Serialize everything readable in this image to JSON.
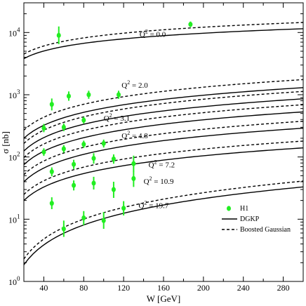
{
  "chart_data": {
    "type": "scatter",
    "xlabel": "W [GeV]",
    "ylabel": "σ [nb]",
    "xlim": [
      20,
      300
    ],
    "ylim": [
      1,
      30000
    ],
    "y_scale": "log",
    "x_ticks": [
      "40",
      "80",
      "120",
      "160",
      "200",
      "240",
      "280"
    ],
    "y_ticks": [
      "10",
      "10",
      "10",
      "10",
      "10"
    ],
    "y_tick_exponents": [
      "0",
      "1",
      "2",
      "3",
      "4"
    ],
    "colors": {
      "h1": "#22ee22",
      "curve": "#000000"
    },
    "legend": {
      "placement": "lower-right",
      "entries": [
        {
          "label": "H1",
          "style": "marker"
        },
        {
          "label": "DGKP",
          "style": "solid"
        },
        {
          "label": "Boosted Gaussian",
          "style": "dashed"
        }
      ]
    },
    "q2_labels": [
      {
        "prefix": "Q",
        "exp": "2",
        "suffix": " = 0.0",
        "x": 136,
        "y": 8500
      },
      {
        "prefix": "Q",
        "exp": "2",
        "suffix": " = 2.0",
        "x": 118,
        "y": 1300
      },
      {
        "prefix": "Q",
        "exp": "2",
        "suffix": " = 3.1",
        "x": 100,
        "y": 380
      },
      {
        "prefix": "Q",
        "exp": "2",
        "suffix": " = 4.8",
        "x": 118,
        "y": 200
      },
      {
        "prefix": "Q",
        "exp": "2",
        "suffix": " = 7.2",
        "x": 145,
        "y": 68
      },
      {
        "prefix": "Q",
        "exp": "2",
        "suffix": " = 10.9",
        "x": 140,
        "y": 37
      },
      {
        "prefix": "Q",
        "exp": "2",
        "suffix": " = 19.7",
        "x": 135,
        "y": 15
      }
    ],
    "series": [
      {
        "name": "H1",
        "points": [
          {
            "x": 55,
            "y": 9000,
            "err": [
              6500,
              12500
            ]
          },
          {
            "x": 187,
            "y": 13500,
            "err": [
              12200,
              15000
            ]
          },
          {
            "x": 48,
            "y": 700,
            "err": [
              560,
              870
            ]
          },
          {
            "x": 65,
            "y": 950,
            "err": [
              800,
              1130
            ]
          },
          {
            "x": 85,
            "y": 1000,
            "err": [
              860,
              1160
            ]
          },
          {
            "x": 115,
            "y": 1000,
            "err": [
              860,
              1160
            ]
          },
          {
            "x": 40,
            "y": 290,
            "err": [
              250,
              340
            ]
          },
          {
            "x": 60,
            "y": 300,
            "err": [
              260,
              345
            ]
          },
          {
            "x": 80,
            "y": 390,
            "err": [
              345,
              440
            ]
          },
          {
            "x": 40,
            "y": 120,
            "err": [
              104,
              138
            ]
          },
          {
            "x": 60,
            "y": 135,
            "err": [
              117,
              155
            ]
          },
          {
            "x": 80,
            "y": 160,
            "err": [
              140,
              183
            ]
          },
          {
            "x": 100,
            "y": 165,
            "err": [
              142,
              190
            ]
          },
          {
            "x": 48,
            "y": 58,
            "err": [
              49,
              68
            ]
          },
          {
            "x": 70,
            "y": 76,
            "err": [
              64,
              90
            ]
          },
          {
            "x": 90,
            "y": 95,
            "err": [
              78,
              115
            ]
          },
          {
            "x": 110,
            "y": 93,
            "err": [
              78,
              110
            ]
          },
          {
            "x": 130,
            "y": 78,
            "err": [
              58,
              105
            ]
          },
          {
            "x": 70,
            "y": 35,
            "err": [
              29,
              42
            ]
          },
          {
            "x": 90,
            "y": 38,
            "err": [
              30,
              48
            ]
          },
          {
            "x": 110,
            "y": 30,
            "err": [
              22,
              40
            ]
          },
          {
            "x": 130,
            "y": 45,
            "err": [
              33,
              60
            ]
          },
          {
            "x": 48,
            "y": 18,
            "err": [
              14.5,
              22.5
            ]
          },
          {
            "x": 60,
            "y": 7,
            "err": [
              5.2,
              9.5
            ]
          },
          {
            "x": 80,
            "y": 10.5,
            "err": [
              8,
              13.5
            ]
          },
          {
            "x": 100,
            "y": 9.5,
            "err": [
              7,
              13
            ]
          },
          {
            "x": 120,
            "y": 15,
            "err": [
              11.5,
              19.5
            ]
          }
        ]
      }
    ],
    "curves": [
      {
        "group": "Q2=0.0",
        "model": "DGKP",
        "style": "solid",
        "x": [
          20,
          300
        ],
        "y": [
          3800,
          11500
        ]
      },
      {
        "group": "Q2=0.0",
        "model": "Boosted Gaussian",
        "style": "dashed",
        "x": [
          20,
          300
        ],
        "y": [
          4500,
          14500
        ]
      },
      {
        "group": "Q2=2.0",
        "model": "DGKP",
        "style": "solid",
        "x": [
          20,
          300
        ],
        "y": [
          200,
          1300
        ]
      },
      {
        "group": "Q2=2.0",
        "model": "Boosted Gaussian",
        "style": "dashed",
        "x": [
          20,
          300
        ],
        "y": [
          270,
          1750
        ]
      },
      {
        "group": "Q2=3.1",
        "model": "DGKP",
        "style": "solid",
        "x": [
          20,
          300
        ],
        "y": [
          125,
          860
        ]
      },
      {
        "group": "Q2=3.1",
        "model": "Boosted Gaussian",
        "style": "dashed",
        "x": [
          20,
          300
        ],
        "y": [
          165,
          1130
        ]
      },
      {
        "group": "Q2=4.8",
        "model": "DGKP",
        "style": "solid",
        "x": [
          20,
          300
        ],
        "y": [
          75,
          530
        ]
      },
      {
        "group": "Q2=4.8",
        "model": "Boosted Gaussian",
        "style": "dashed",
        "x": [
          20,
          300
        ],
        "y": [
          98,
          690
        ]
      },
      {
        "group": "Q2=7.2",
        "model": "DGKP",
        "style": "solid",
        "x": [
          20,
          300
        ],
        "y": [
          40,
          290
        ]
      },
      {
        "group": "Q2=7.2",
        "model": "Boosted Gaussian",
        "style": "dashed",
        "x": [
          20,
          300
        ],
        "y": [
          52,
          375
        ]
      },
      {
        "group": "Q2=10.9",
        "model": "DGKP",
        "style": "solid",
        "x": [
          20,
          300
        ],
        "y": [
          20,
          140
        ]
      },
      {
        "group": "Q2=10.9",
        "model": "Boosted Gaussian",
        "style": "dashed",
        "x": [
          20,
          300
        ],
        "y": [
          25,
          180
        ]
      },
      {
        "group": "Q2=19.7",
        "model": "DGKP",
        "style": "solid",
        "x": [
          20,
          300
        ],
        "y": [
          1.85,
          33
        ]
      },
      {
        "group": "Q2=19.7",
        "model": "Boosted Gaussian",
        "style": "dashed",
        "x": [
          20,
          300
        ],
        "y": [
          2.3,
          41
        ]
      }
    ]
  }
}
